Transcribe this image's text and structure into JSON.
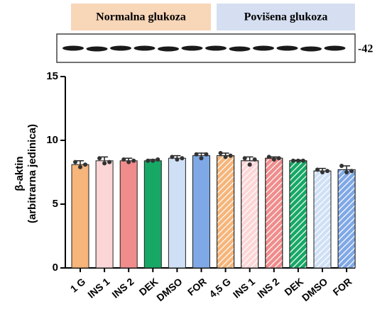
{
  "chart_data": {
    "type": "bar",
    "groups": [
      {
        "label": "Normalna glukoza",
        "color": "#f8d6b8"
      },
      {
        "label": "Povišena glukoza",
        "color": "#d6dff1"
      }
    ],
    "blot_label": "-42",
    "ylabel": [
      "β-aktin",
      "(arbitrarna jedinica)"
    ],
    "categories": [
      "1 G",
      "INS 1",
      "INS 2",
      "DEK",
      "DMSO",
      "FOR",
      "4,5 G",
      "INS 1",
      "INS 2",
      "DEK",
      "DMSO",
      "FOR"
    ],
    "values": [
      8.1,
      8.4,
      8.4,
      8.4,
      8.6,
      8.8,
      8.8,
      8.4,
      8.6,
      8.4,
      7.6,
      7.7
    ],
    "errors": [
      0.3,
      0.3,
      0.2,
      0.1,
      0.2,
      0.2,
      0.2,
      0.3,
      0.1,
      0.05,
      0.2,
      0.3
    ],
    "points": [
      [
        8.3,
        7.9,
        8.1
      ],
      [
        8.6,
        8.2,
        8.3
      ],
      [
        8.5,
        8.3,
        8.4
      ],
      [
        8.4,
        8.4,
        8.5
      ],
      [
        8.7,
        8.5,
        8.6
      ],
      [
        8.9,
        8.6,
        8.9
      ],
      [
        9.0,
        8.7,
        8.8
      ],
      [
        8.6,
        8.1,
        8.5
      ],
      [
        8.7,
        8.5,
        8.6
      ],
      [
        8.4,
        8.4,
        8.4
      ],
      [
        7.7,
        7.5,
        7.6
      ],
      [
        8.0,
        7.5,
        7.6
      ]
    ],
    "colors": [
      "#f6b57a",
      "#fcd6d6",
      "#f08c8c",
      "#17a866",
      "#cfe0f6",
      "#7fa8e6",
      "#f6b57a",
      "#fcd6d6",
      "#f08c8c",
      "#17a866",
      "#cfe0f6",
      "#7fa8e6"
    ],
    "hatched": [
      false,
      false,
      false,
      false,
      false,
      false,
      true,
      true,
      true,
      true,
      true,
      true
    ],
    "ylim": [
      0,
      15
    ],
    "yticks": [
      0,
      5,
      10,
      15
    ]
  }
}
